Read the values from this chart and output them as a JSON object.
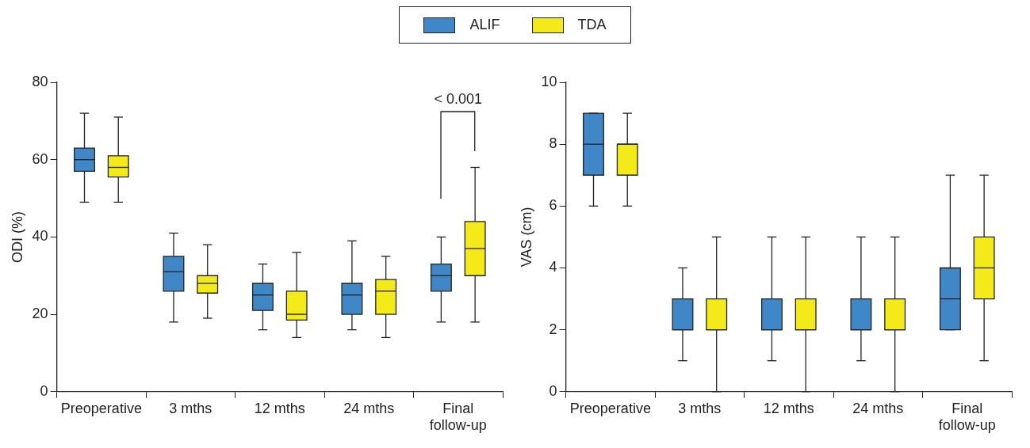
{
  "chart_data": [
    {
      "type": "box",
      "categories": [
        "Preoperative",
        "3 mths",
        "12 mths",
        "24 mths",
        "Final follow-up"
      ],
      "ylabel": "ODI (%)",
      "ylim": [
        0,
        80
      ],
      "yticks": [
        0,
        20,
        40,
        60,
        80
      ],
      "grid": false,
      "legend": "top",
      "annotations": [
        "< 0.001"
      ],
      "series": [
        {
          "name": "ALIF",
          "color": "#3f87c6",
          "boxes": [
            {
              "low": 49,
              "q1": 57,
              "median": 60,
              "q3": 63,
              "high": 72
            },
            {
              "low": 18,
              "q1": 26,
              "median": 31,
              "q3": 35,
              "high": 41
            },
            {
              "low": 16,
              "q1": 21,
              "median": 25,
              "q3": 28,
              "high": 33
            },
            {
              "low": 16,
              "q1": 20,
              "median": 25,
              "q3": 28,
              "high": 39
            },
            {
              "low": 18,
              "q1": 26,
              "median": 30,
              "q3": 33,
              "high": 40
            }
          ]
        },
        {
          "name": "TDA",
          "color": "#f4ea1a",
          "boxes": [
            {
              "low": 49,
              "q1": 55.5,
              "median": 58,
              "q3": 61,
              "high": 71
            },
            {
              "low": 19,
              "q1": 25.5,
              "median": 28,
              "q3": 30,
              "high": 38
            },
            {
              "low": 14,
              "q1": 18.5,
              "median": 20,
              "q3": 26,
              "high": 36
            },
            {
              "low": 14,
              "q1": 20,
              "median": 26,
              "q3": 29,
              "high": 35
            },
            {
              "low": 18,
              "q1": 30,
              "median": 37,
              "q3": 44,
              "high": 58
            }
          ]
        }
      ]
    },
    {
      "type": "box",
      "categories": [
        "Preoperative",
        "3 mths",
        "12 mths",
        "24 mths",
        "Final follow-up"
      ],
      "ylabel": "VAS (cm)",
      "ylim": [
        0,
        10
      ],
      "yticks": [
        0,
        2,
        4,
        6,
        8,
        10
      ],
      "grid": false,
      "series": [
        {
          "color": "#3f87c6",
          "boxes": [
            {
              "low": 6,
              "q1": 7,
              "median": 8,
              "q3": 9,
              "high": 9
            },
            {
              "low": 1,
              "q1": 2,
              "median": 2,
              "q3": 3,
              "high": 4
            },
            {
              "low": 1,
              "q1": 2,
              "median": 2,
              "q3": 3,
              "high": 5
            },
            {
              "low": 1,
              "q1": 2,
              "median": 2,
              "q3": 3,
              "high": 5
            },
            {
              "low": 2,
              "q1": 2,
              "median": 3,
              "q3": 4,
              "high": 7
            }
          ]
        },
        {
          "color": "#f4ea1a",
          "boxes": [
            {
              "low": 6,
              "q1": 7,
              "median": 8,
              "q3": 8,
              "high": 9
            },
            {
              "low": 0,
              "q1": 2,
              "median": 2,
              "q3": 3,
              "high": 5
            },
            {
              "low": 0,
              "q1": 2,
              "median": 2,
              "q3": 3,
              "high": 5
            },
            {
              "low": 0,
              "q1": 2,
              "median": 2,
              "q3": 3,
              "high": 5
            },
            {
              "low": 1,
              "q1": 3,
              "median": 4,
              "q3": 5,
              "high": 7
            }
          ]
        }
      ]
    }
  ]
}
